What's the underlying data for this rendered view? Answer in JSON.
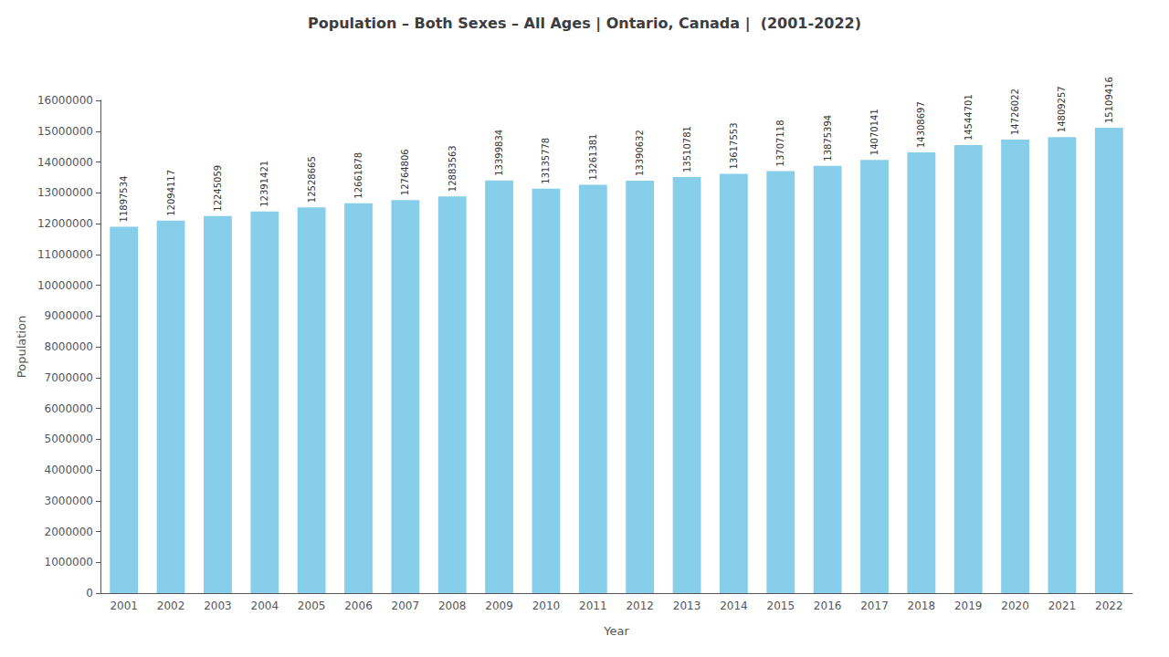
{
  "chart_data": {
    "type": "bar",
    "title": "Population – Both Sexes – All Ages | Ontario, Canada |  (2001-2022)",
    "x_label": "Year",
    "y_label": "Population",
    "categories": [
      "2001",
      "2002",
      "2003",
      "2004",
      "2005",
      "2006",
      "2007",
      "2008",
      "2009",
      "2010",
      "2011",
      "2012",
      "2013",
      "2014",
      "2015",
      "2016",
      "2017",
      "2018",
      "2019",
      "2020",
      "2021",
      "2022"
    ],
    "values": [
      11897534,
      12094117,
      12245059,
      12391421,
      12528665,
      12661878,
      12764806,
      12883563,
      13399834,
      13135778,
      13261381,
      13390632,
      13510781,
      13617553,
      13707118,
      13875394,
      14070141,
      14308697,
      14544701,
      14726022,
      14809257,
      15109416
    ],
    "color": "#87CEEB",
    "ylim": [
      0,
      16000000
    ],
    "yticks": [
      0,
      1000000,
      2000000,
      3000000,
      4000000,
      5000000,
      6000000,
      7000000,
      8000000,
      9000000,
      10000000,
      11000000,
      12000000,
      13000000,
      14000000,
      15000000,
      16000000
    ],
    "grid": false,
    "data_labels": true
  }
}
